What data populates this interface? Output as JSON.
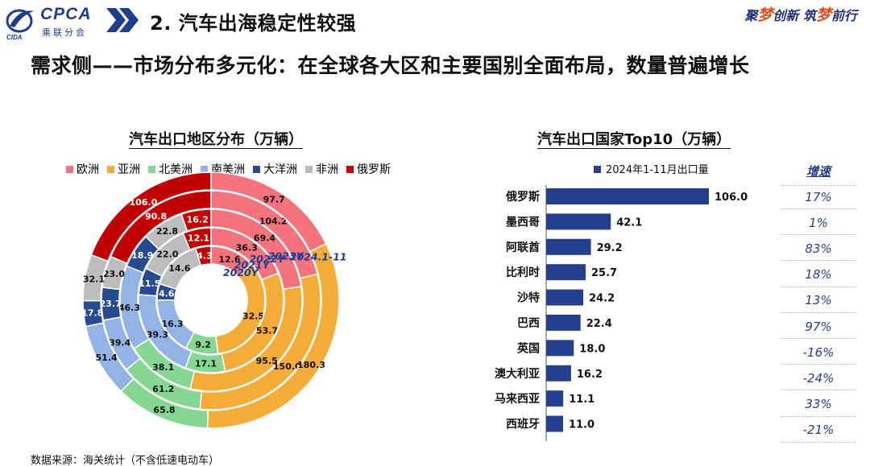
{
  "header": {
    "logo": {
      "brand": "CPCA",
      "cn": "乘联分会",
      "sub": "CIDA"
    },
    "section_title": "2. 汽车出海稳定性较强",
    "slogan": {
      "p1": "聚",
      "p2": "梦",
      "p3": "创新 筑",
      "p4": "梦",
      "p5": "前行"
    }
  },
  "headline": "需求侧——市场分布多元化：在全球各大区和主要国别全面布局，数量普遍增长",
  "source": "数据来源：海关统计（不含低速电动车）",
  "colors": {
    "europe": "#f4737d",
    "asia": "#f5ac39",
    "north_america": "#86d694",
    "south_america": "#93b2e6",
    "oceania": "#274a90",
    "africa": "#bdbdbd",
    "russia": "#c00000",
    "bar": "#26408f"
  },
  "growth": {
    "header": "增速",
    "values": [
      "17%",
      "1%",
      "83%",
      "18%",
      "13%",
      "97%",
      "-16%",
      "-24%",
      "33%",
      "-21%"
    ]
  },
  "chart_data": [
    {
      "type": "donut",
      "title": "汽车出口地区分布（万辆）",
      "categories": [
        "欧洲",
        "亚洲",
        "北美洲",
        "南美洲",
        "大洋洲",
        "非洲",
        "俄罗斯"
      ],
      "series": [
        {
          "name": "2020Y",
          "values": [
            12.6,
            32.5,
            9.2,
            16.3,
            4.6,
            14.6,
            4.3
          ]
        },
        {
          "name": "2021Y",
          "values": [
            36.3,
            53.7,
            17.1,
            39.3,
            11.5,
            22.0,
            12.1
          ]
        },
        {
          "name": "2022Y",
          "values": [
            69.4,
            95.5,
            38.1,
            46.3,
            18.9,
            22.8,
            16.2
          ]
        },
        {
          "name": "2023Y",
          "values": [
            104.2,
            150.0,
            61.2,
            39.4,
            23.7,
            23.0,
            90.8
          ]
        },
        {
          "name": "2024.1-11",
          "values": [
            97.7,
            180.3,
            65.8,
            51.4,
            17.8,
            32.1,
            106.0
          ]
        }
      ]
    },
    {
      "type": "bar",
      "orientation": "horizontal",
      "title": "汽车出口国家Top10（万辆）",
      "legend": "2024年1-11月出口量",
      "categories": [
        "俄罗斯",
        "墨西哥",
        "阿联酋",
        "比利时",
        "沙特",
        "巴西",
        "英国",
        "澳大利亚",
        "马来西亚",
        "西班牙"
      ],
      "values": [
        106.0,
        42.1,
        29.2,
        25.7,
        24.2,
        22.4,
        18.0,
        16.2,
        11.1,
        11.0
      ],
      "xlim": [
        0,
        106.0
      ]
    }
  ]
}
